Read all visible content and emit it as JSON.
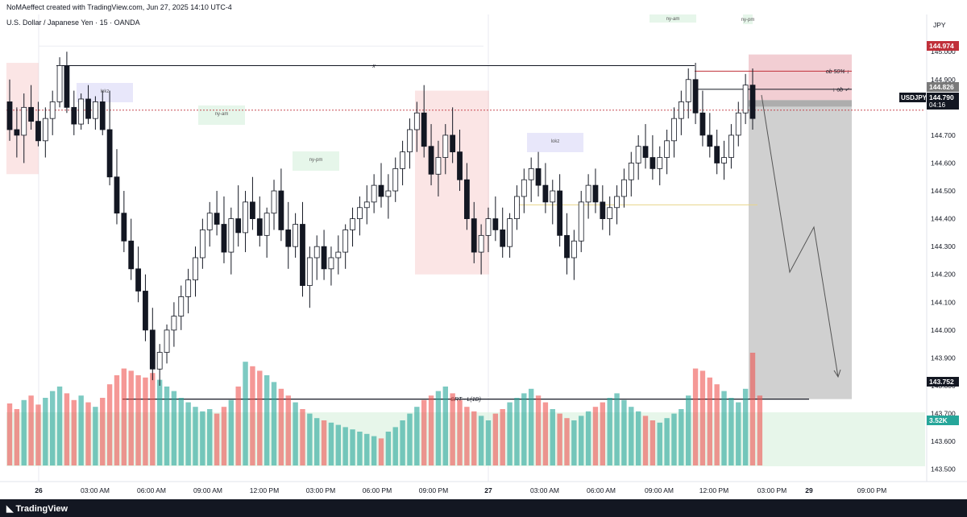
{
  "header": {
    "credit": "NoMAeffect created with TradingView.com, Jun 27, 2025 14:10 UTC-4",
    "symbol_title": "U.S. Dollar / Japanese Yen · 15 · OANDA"
  },
  "footer": {
    "logo_text": "TradingView"
  },
  "chart_data": {
    "type": "candlestick",
    "symbol": "USDJPY",
    "currency": "JPY",
    "y_ticks": [
      "145.000",
      "144.900",
      "144.700",
      "144.600",
      "144.500",
      "144.400",
      "144.300",
      "144.200",
      "144.100",
      "144.000",
      "143.900",
      "143.800",
      "143.700",
      "143.600",
      "143.500"
    ],
    "ylim": [
      143.45,
      145.07
    ],
    "x_ticks": [
      "26",
      "03:00 AM",
      "06:00 AM",
      "09:00 AM",
      "12:00 PM",
      "03:00 PM",
      "06:00 PM",
      "09:00 PM",
      "27",
      "03:00 AM",
      "06:00 AM",
      "09:00 AM",
      "12:00 PM",
      "03:00 PM",
      "29",
      "09:00 PM"
    ],
    "price_labels": [
      {
        "value": "144.974",
        "color": "#c0303a",
        "price": 144.974
      },
      {
        "value": "144.826",
        "color": "#7a7a7a",
        "price": 144.826
      },
      {
        "value": "USDJPY",
        "color": "#131722",
        "price": 144.79
      },
      {
        "value": "144.790",
        "color": "#131722",
        "price": 144.79
      },
      {
        "value": "04:16",
        "color": "#131722",
        "price": 144.765
      },
      {
        "value": "143.752",
        "color": "#131722",
        "price": 143.752
      },
      {
        "value": "3.52K",
        "color": "#26a69a",
        "price": 143.6
      }
    ],
    "annotations": [
      {
        "text": "x",
        "price": 144.95
      },
      {
        "text": "CRT - L(1D)",
        "price": 143.752
      },
      {
        "text": "ob 50% ↓",
        "price": 144.93
      },
      {
        "text": "↓ ob ✓",
        "price": 144.865
      }
    ],
    "session_boxes": [
      {
        "label": "lokz",
        "color": "#e6e4fa"
      },
      {
        "label": "ny-am",
        "color": "#e3f5e8"
      },
      {
        "label": "ny-pm",
        "color": "#e3f5e8"
      },
      {
        "label": "lokz",
        "color": "#e6e4fa"
      },
      {
        "label": "ny-am",
        "color": "#e3f5e8"
      },
      {
        "label": "ny-pm",
        "color": "#e3f5e8"
      }
    ],
    "candles": [
      [
        144.82,
        144.9,
        144.68,
        144.72
      ],
      [
        144.72,
        144.8,
        144.62,
        144.7
      ],
      [
        144.7,
        144.85,
        144.6,
        144.8
      ],
      [
        144.8,
        144.88,
        144.72,
        144.75
      ],
      [
        144.75,
        144.82,
        144.66,
        144.68
      ],
      [
        144.68,
        144.8,
        144.62,
        144.76
      ],
      [
        144.76,
        144.86,
        144.7,
        144.82
      ],
      [
        144.82,
        144.98,
        144.8,
        144.95
      ],
      [
        144.95,
        145.0,
        144.78,
        144.8
      ],
      [
        144.8,
        144.86,
        144.7,
        144.74
      ],
      [
        144.74,
        144.85,
        144.72,
        144.83
      ],
      [
        144.83,
        144.88,
        144.74,
        144.76
      ],
      [
        144.76,
        144.84,
        144.72,
        144.82
      ],
      [
        144.82,
        144.86,
        144.7,
        144.72
      ],
      [
        144.72,
        144.86,
        144.52,
        144.55
      ],
      [
        144.55,
        144.65,
        144.38,
        144.42
      ],
      [
        144.42,
        144.5,
        144.28,
        144.32
      ],
      [
        144.32,
        144.4,
        144.18,
        144.22
      ],
      [
        144.22,
        144.3,
        144.1,
        144.14
      ],
      [
        144.14,
        144.2,
        143.96,
        144.0
      ],
      [
        144.0,
        144.08,
        143.82,
        143.86
      ],
      [
        143.86,
        143.95,
        143.8,
        143.92
      ],
      [
        143.92,
        144.02,
        143.88,
        144.0
      ],
      [
        144.0,
        144.1,
        143.94,
        144.05
      ],
      [
        144.05,
        144.16,
        144.0,
        144.12
      ],
      [
        144.12,
        144.22,
        144.06,
        144.18
      ],
      [
        144.18,
        144.3,
        144.12,
        144.26
      ],
      [
        144.26,
        144.4,
        144.22,
        144.36
      ],
      [
        144.36,
        144.46,
        144.3,
        144.42
      ],
      [
        144.42,
        144.5,
        144.34,
        144.38
      ],
      [
        144.38,
        144.48,
        144.24,
        144.28
      ],
      [
        144.28,
        144.44,
        144.2,
        144.4
      ],
      [
        144.4,
        144.52,
        144.3,
        144.35
      ],
      [
        144.35,
        144.5,
        144.28,
        144.46
      ],
      [
        144.46,
        144.55,
        144.36,
        144.4
      ],
      [
        144.4,
        144.48,
        144.3,
        144.34
      ],
      [
        144.34,
        144.44,
        144.26,
        144.42
      ],
      [
        144.42,
        144.54,
        144.36,
        144.5
      ],
      [
        144.5,
        144.58,
        144.32,
        144.36
      ],
      [
        144.36,
        144.46,
        144.22,
        144.3
      ],
      [
        144.3,
        144.42,
        144.26,
        144.38
      ],
      [
        144.38,
        144.46,
        144.12,
        144.16
      ],
      [
        144.16,
        144.3,
        144.08,
        144.26
      ],
      [
        144.26,
        144.34,
        144.18,
        144.3
      ],
      [
        144.3,
        144.36,
        144.18,
        144.22
      ],
      [
        144.22,
        144.3,
        144.16,
        144.26
      ],
      [
        144.26,
        144.34,
        144.2,
        144.28
      ],
      [
        144.28,
        144.38,
        144.22,
        144.36
      ],
      [
        144.36,
        144.44,
        144.3,
        144.4
      ],
      [
        144.4,
        144.48,
        144.34,
        144.44
      ],
      [
        144.44,
        144.52,
        144.38,
        144.46
      ],
      [
        144.46,
        144.56,
        144.42,
        144.52
      ],
      [
        144.52,
        144.6,
        144.44,
        144.48
      ],
      [
        144.48,
        144.56,
        144.4,
        144.5
      ],
      [
        144.5,
        144.62,
        144.46,
        144.58
      ],
      [
        144.58,
        144.68,
        144.52,
        144.64
      ],
      [
        144.64,
        144.76,
        144.58,
        144.72
      ],
      [
        144.72,
        144.82,
        144.64,
        144.78
      ],
      [
        144.78,
        144.88,
        144.62,
        144.66
      ],
      [
        144.66,
        144.74,
        144.52,
        144.56
      ],
      [
        144.56,
        144.68,
        144.48,
        144.62
      ],
      [
        144.62,
        144.74,
        144.56,
        144.7
      ],
      [
        144.7,
        144.8,
        144.6,
        144.64
      ],
      [
        144.64,
        144.72,
        144.5,
        144.54
      ],
      [
        144.54,
        144.6,
        144.36,
        144.4
      ],
      [
        144.4,
        144.46,
        144.24,
        144.28
      ],
      [
        144.28,
        144.38,
        144.2,
        144.34
      ],
      [
        144.34,
        144.44,
        144.28,
        144.4
      ],
      [
        144.4,
        144.48,
        144.32,
        144.36
      ],
      [
        144.36,
        144.44,
        144.26,
        144.3
      ],
      [
        144.3,
        144.42,
        144.26,
        144.4
      ],
      [
        144.4,
        144.52,
        144.36,
        144.48
      ],
      [
        144.48,
        144.58,
        144.42,
        144.54
      ],
      [
        144.54,
        144.62,
        144.46,
        144.58
      ],
      [
        144.58,
        144.64,
        144.48,
        144.52
      ],
      [
        144.52,
        144.6,
        144.42,
        144.46
      ],
      [
        144.46,
        144.54,
        144.38,
        144.5
      ],
      [
        144.5,
        144.56,
        144.3,
        144.34
      ],
      [
        144.34,
        144.42,
        144.2,
        144.26
      ],
      [
        144.26,
        144.36,
        144.18,
        144.32
      ],
      [
        144.32,
        144.5,
        144.28,
        144.46
      ],
      [
        144.46,
        144.56,
        144.4,
        144.52
      ],
      [
        144.52,
        144.58,
        144.42,
        144.46
      ],
      [
        144.46,
        144.52,
        144.36,
        144.4
      ],
      [
        144.4,
        144.48,
        144.34,
        144.44
      ],
      [
        144.44,
        144.52,
        144.38,
        144.48
      ],
      [
        144.48,
        144.58,
        144.44,
        144.54
      ],
      [
        144.54,
        144.64,
        144.48,
        144.6
      ],
      [
        144.6,
        144.7,
        144.54,
        144.66
      ],
      [
        144.66,
        144.74,
        144.58,
        144.62
      ],
      [
        144.62,
        144.7,
        144.54,
        144.58
      ],
      [
        144.58,
        144.66,
        144.52,
        144.62
      ],
      [
        144.62,
        144.72,
        144.56,
        144.68
      ],
      [
        144.68,
        144.8,
        144.62,
        144.76
      ],
      [
        144.76,
        144.86,
        144.7,
        144.82
      ],
      [
        144.82,
        144.94,
        144.76,
        144.9
      ],
      [
        144.9,
        144.96,
        144.74,
        144.78
      ],
      [
        144.78,
        144.86,
        144.66,
        144.7
      ],
      [
        144.7,
        144.78,
        144.62,
        144.66
      ],
      [
        144.66,
        144.72,
        144.56,
        144.6
      ],
      [
        144.6,
        144.68,
        144.54,
        144.62
      ],
      [
        144.62,
        144.74,
        144.58,
        144.7
      ],
      [
        144.7,
        144.82,
        144.66,
        144.78
      ],
      [
        144.78,
        144.92,
        144.74,
        144.88
      ],
      [
        144.88,
        144.94,
        144.72,
        144.76
      ]
    ],
    "volumes": [
      0.55,
      0.5,
      0.58,
      0.62,
      0.54,
      0.6,
      0.66,
      0.7,
      0.64,
      0.58,
      0.62,
      0.56,
      0.52,
      0.6,
      0.72,
      0.8,
      0.86,
      0.84,
      0.8,
      0.78,
      0.82,
      0.76,
      0.7,
      0.66,
      0.6,
      0.56,
      0.52,
      0.48,
      0.5,
      0.46,
      0.52,
      0.58,
      0.7,
      0.92,
      0.88,
      0.84,
      0.8,
      0.74,
      0.68,
      0.62,
      0.56,
      0.5,
      0.46,
      0.42,
      0.4,
      0.38,
      0.36,
      0.34,
      0.32,
      0.3,
      0.28,
      0.26,
      0.24,
      0.3,
      0.34,
      0.4,
      0.46,
      0.52,
      0.58,
      0.62,
      0.66,
      0.7,
      0.64,
      0.58,
      0.52,
      0.48,
      0.44,
      0.4,
      0.46,
      0.5,
      0.56,
      0.6,
      0.64,
      0.68,
      0.62,
      0.56,
      0.5,
      0.46,
      0.42,
      0.4,
      0.44,
      0.48,
      0.52,
      0.56,
      0.6,
      0.64,
      0.58,
      0.52,
      0.48,
      0.44,
      0.4,
      0.38,
      0.42,
      0.46,
      0.5,
      0.62,
      0.86,
      0.84,
      0.78,
      0.72,
      0.66,
      0.6,
      0.56,
      0.68,
      1.0,
      0.62
    ]
  }
}
